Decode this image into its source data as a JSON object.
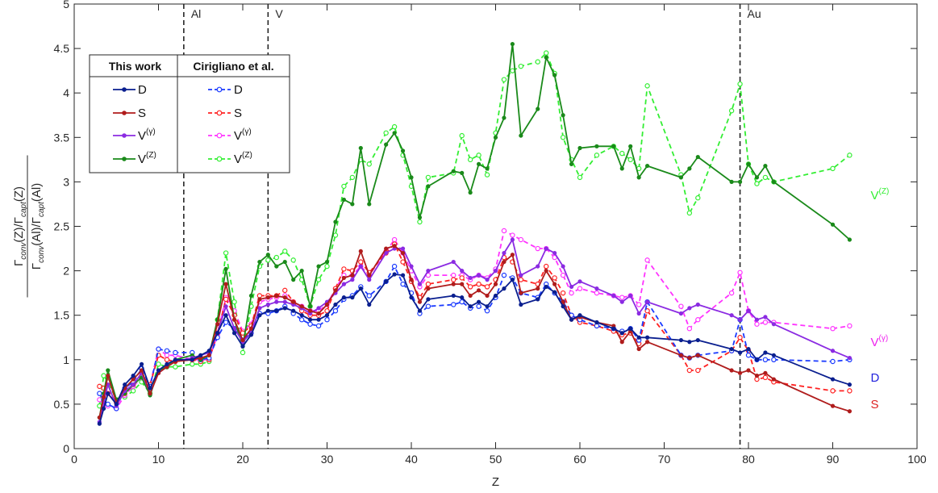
{
  "chart_data": {
    "type": "line",
    "title": "",
    "xlabel": "Z",
    "ylabel_parts": {
      "lhs_num": "Γ",
      "conv_sub": "conv",
      "z": "(Z)/",
      "capt_sub": "capt",
      "z2": "(Z)",
      "al": "(Al)/",
      "al2": "(Al)"
    },
    "xlim": [
      0,
      100
    ],
    "ylim": [
      0,
      5
    ],
    "xticks": [
      "0",
      "10",
      "20",
      "30",
      "40",
      "50",
      "60",
      "70",
      "80",
      "90",
      "100"
    ],
    "yticks": [
      "0",
      "0.5",
      "1",
      "1.5",
      "2",
      "2.5",
      "3",
      "3.5",
      "4",
      "4.5",
      "5"
    ],
    "grid": false,
    "vlines": [
      {
        "x": 13,
        "label": "Al"
      },
      {
        "x": 23,
        "label": "V"
      },
      {
        "x": 79,
        "label": "Au"
      }
    ],
    "legend": {
      "placement": "top-left",
      "header_left": "This work",
      "header_right": "Cirigliano et al.",
      "entries": [
        {
          "label_main": "D",
          "label_sup": ""
        },
        {
          "label_main": "S",
          "label_sup": ""
        },
        {
          "label_main": "V",
          "label_sup": "(γ)"
        },
        {
          "label_main": "V",
          "label_sup": "(Z)"
        }
      ]
    },
    "end_labels": [
      {
        "main": "V",
        "sup": "(Z)",
        "color": "#33ee33",
        "x": 94.5,
        "y": 2.85
      },
      {
        "main": "V",
        "sup": "(γ)",
        "color": "#ee22ee",
        "x": 94.5,
        "y": 1.2
      },
      {
        "main": "D",
        "sup": "",
        "color": "#2222dd",
        "x": 94.5,
        "y": 0.8
      },
      {
        "main": "S",
        "sup": "",
        "color": "#dd2222",
        "x": 94.5,
        "y": 0.5
      }
    ],
    "x": [
      3,
      3.5,
      4,
      5,
      6,
      7,
      8,
      9,
      10,
      11,
      12,
      14,
      15,
      16,
      17,
      18,
      19,
      20,
      21,
      22,
      23,
      24,
      25,
      26,
      27,
      28,
      29,
      30,
      31,
      32,
      33,
      34,
      35,
      37,
      38,
      39,
      40,
      41,
      42,
      45,
      46,
      47,
      48,
      49,
      50,
      51,
      52,
      53,
      55,
      56,
      57,
      58,
      59,
      60,
      62,
      64,
      65,
      66,
      67,
      68,
      72,
      73,
      74,
      78,
      79,
      80,
      81,
      82,
      83,
      90,
      92
    ],
    "series": [
      {
        "name": "D",
        "style": "solid",
        "color": "#0a1f8f",
        "values": [
          0.28,
          0.45,
          0.62,
          0.5,
          0.72,
          0.82,
          0.95,
          0.68,
          0.88,
          0.95,
          1.0,
          1.0,
          1.05,
          1.1,
          1.3,
          1.5,
          1.3,
          1.15,
          1.28,
          1.5,
          1.55,
          1.55,
          1.58,
          1.55,
          1.5,
          1.45,
          1.45,
          1.5,
          1.62,
          1.7,
          1.7,
          1.8,
          1.62,
          1.88,
          1.96,
          1.95,
          1.7,
          1.55,
          1.68,
          1.72,
          1.7,
          1.6,
          1.65,
          1.6,
          1.72,
          1.8,
          1.9,
          1.62,
          1.68,
          1.82,
          1.76,
          1.6,
          1.45,
          1.5,
          1.42,
          1.35,
          1.3,
          1.35,
          1.25,
          1.25,
          1.22,
          1.2,
          1.22,
          1.12,
          1.08,
          1.12,
          1.0,
          1.08,
          1.05,
          0.78,
          0.72
        ]
      },
      {
        "name": "S",
        "style": "solid",
        "color": "#b01c1c",
        "values": [
          0.35,
          0.58,
          0.82,
          0.52,
          0.68,
          0.78,
          0.88,
          0.62,
          0.85,
          0.92,
          0.98,
          1.0,
          1.02,
          1.05,
          1.4,
          1.85,
          1.45,
          1.22,
          1.35,
          1.68,
          1.7,
          1.72,
          1.7,
          1.65,
          1.6,
          1.55,
          1.52,
          1.62,
          1.78,
          1.92,
          1.95,
          2.22,
          1.95,
          2.25,
          2.28,
          2.2,
          1.9,
          1.65,
          1.8,
          1.85,
          1.85,
          1.72,
          1.78,
          1.72,
          1.85,
          2.1,
          2.18,
          1.75,
          1.8,
          2.0,
          1.85,
          1.65,
          1.45,
          1.48,
          1.42,
          1.38,
          1.2,
          1.32,
          1.12,
          1.2,
          1.05,
          1.02,
          1.05,
          0.88,
          0.85,
          0.88,
          0.82,
          0.85,
          0.78,
          0.48,
          0.42
        ]
      },
      {
        "name": "V(γ)",
        "style": "solid",
        "color": "#8b2be2",
        "values": [
          0.3,
          0.52,
          0.72,
          0.48,
          0.65,
          0.72,
          0.85,
          0.62,
          0.85,
          0.92,
          0.98,
          1.02,
          1.05,
          1.08,
          1.3,
          1.6,
          1.35,
          1.2,
          1.3,
          1.58,
          1.62,
          1.65,
          1.65,
          1.62,
          1.58,
          1.52,
          1.58,
          1.65,
          1.75,
          1.85,
          1.9,
          2.05,
          1.9,
          2.2,
          2.25,
          2.25,
          2.05,
          1.85,
          2.0,
          2.1,
          2.0,
          1.92,
          1.95,
          1.9,
          2.0,
          2.2,
          2.35,
          1.95,
          2.05,
          2.25,
          2.2,
          2.05,
          1.82,
          1.88,
          1.8,
          1.72,
          1.65,
          1.72,
          1.52,
          1.65,
          1.52,
          1.58,
          1.62,
          1.5,
          1.45,
          1.55,
          1.45,
          1.48,
          1.4,
          1.1,
          1.02
        ]
      },
      {
        "name": "V(Z)",
        "style": "solid",
        "color": "#1a8a1a",
        "values": [
          0.35,
          0.62,
          0.88,
          0.55,
          0.62,
          0.72,
          0.8,
          0.6,
          0.88,
          0.92,
          1.0,
          1.05,
          1.0,
          1.05,
          1.45,
          2.02,
          1.45,
          1.15,
          1.72,
          2.1,
          2.18,
          2.05,
          2.1,
          1.9,
          2.0,
          1.6,
          2.05,
          2.1,
          2.55,
          2.8,
          2.75,
          3.38,
          2.75,
          3.42,
          3.55,
          3.35,
          3.05,
          2.6,
          2.95,
          3.12,
          3.1,
          2.88,
          3.2,
          3.15,
          3.5,
          3.72,
          4.55,
          3.52,
          3.82,
          4.4,
          4.2,
          3.75,
          3.2,
          3.38,
          3.4,
          3.4,
          3.15,
          3.4,
          3.05,
          3.18,
          3.05,
          3.15,
          3.28,
          3.0,
          3.0,
          3.2,
          3.05,
          3.18,
          3.0,
          2.52,
          2.35
        ]
      },
      {
        "name": "D (Cirigliano)",
        "style": "dashed",
        "color": "#1a3aff",
        "values": [
          0.62,
          0.55,
          0.5,
          0.45,
          0.68,
          0.75,
          0.9,
          0.7,
          1.12,
          1.1,
          1.08,
          1.08,
          1.0,
          1.02,
          1.25,
          1.42,
          1.35,
          1.22,
          1.3,
          1.52,
          1.52,
          1.55,
          1.6,
          1.52,
          1.45,
          1.4,
          1.38,
          1.45,
          1.55,
          1.68,
          1.72,
          1.82,
          1.72,
          1.88,
          2.05,
          1.85,
          1.75,
          1.52,
          1.6,
          1.62,
          1.65,
          1.58,
          1.6,
          1.55,
          1.7,
          1.95,
          1.92,
          1.75,
          1.7,
          1.85,
          1.75,
          1.65,
          1.5,
          1.45,
          1.38,
          1.35,
          1.32,
          1.35,
          1.22,
          1.65,
          1.05,
          1.02,
          1.05,
          1.1,
          1.45,
          1.05,
          1.0,
          1.0,
          1.0,
          0.98,
          1.0
        ]
      },
      {
        "name": "S (Cirigliano)",
        "style": "dashed",
        "color": "#ff2222",
        "values": [
          0.7,
          0.68,
          0.62,
          0.52,
          0.62,
          0.72,
          0.82,
          0.72,
          1.05,
          1.0,
          0.98,
          1.0,
          0.98,
          1.0,
          1.3,
          1.68,
          1.5,
          1.3,
          1.38,
          1.72,
          1.72,
          1.72,
          1.78,
          1.65,
          1.55,
          1.5,
          1.5,
          1.55,
          1.8,
          2.02,
          2.0,
          2.1,
          1.98,
          2.2,
          2.3,
          2.1,
          1.88,
          1.7,
          1.85,
          1.9,
          1.92,
          1.82,
          1.85,
          1.82,
          1.9,
          2.15,
          2.1,
          1.9,
          1.85,
          2.05,
          1.92,
          1.75,
          1.5,
          1.42,
          1.38,
          1.32,
          1.28,
          1.3,
          1.18,
          1.55,
          1.05,
          0.88,
          0.88,
          1.1,
          1.25,
          1.1,
          0.78,
          0.8,
          0.75,
          0.65,
          0.65
        ]
      },
      {
        "name": "V(γ) (Cirigliano)",
        "style": "dashed",
        "color": "#ff33ff",
        "values": [
          0.55,
          0.5,
          0.48,
          0.45,
          0.6,
          0.7,
          0.8,
          0.72,
          1.12,
          1.05,
          1.05,
          1.0,
          1.0,
          1.0,
          1.28,
          1.7,
          1.55,
          1.32,
          1.4,
          1.65,
          1.68,
          1.7,
          1.72,
          1.65,
          1.6,
          1.55,
          1.55,
          1.62,
          1.8,
          1.95,
          1.95,
          2.05,
          1.95,
          2.22,
          2.35,
          2.2,
          2.0,
          1.82,
          1.95,
          1.95,
          1.95,
          1.9,
          1.95,
          1.92,
          2.02,
          2.45,
          2.4,
          2.35,
          2.25,
          2.25,
          2.15,
          1.95,
          1.75,
          1.8,
          1.75,
          1.72,
          1.7,
          1.72,
          1.62,
          2.12,
          1.6,
          1.35,
          1.45,
          1.75,
          1.98,
          1.55,
          1.4,
          1.42,
          1.42,
          1.35,
          1.38
        ]
      },
      {
        "name": "V(Z) (Cirigliano)",
        "style": "dashed",
        "color": "#33ee33",
        "values": [
          0.48,
          0.82,
          0.75,
          0.55,
          0.58,
          0.65,
          0.75,
          0.62,
          0.95,
          0.92,
          0.92,
          0.95,
          0.95,
          0.98,
          1.45,
          2.2,
          1.65,
          1.08,
          1.6,
          2.05,
          2.12,
          2.15,
          2.22,
          2.12,
          1.9,
          1.6,
          1.9,
          2.05,
          2.4,
          2.95,
          3.05,
          3.25,
          3.2,
          3.55,
          3.62,
          3.3,
          2.95,
          2.55,
          3.05,
          3.1,
          3.52,
          3.25,
          3.3,
          3.08,
          3.55,
          4.15,
          4.25,
          4.3,
          4.35,
          4.45,
          4.22,
          3.5,
          3.25,
          3.05,
          3.3,
          3.4,
          3.32,
          3.25,
          3.15,
          4.08,
          3.08,
          2.65,
          2.82,
          3.8,
          4.1,
          3.2,
          2.98,
          3.05,
          3.0,
          3.15,
          3.3
        ]
      }
    ]
  }
}
